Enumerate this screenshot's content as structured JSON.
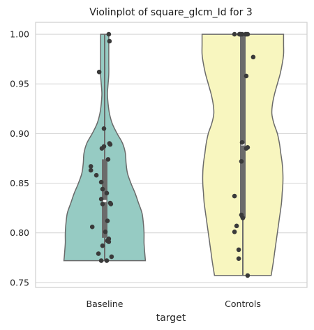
{
  "chart_data": {
    "type": "violin",
    "title": "Violinplot of square_glcm_Id for 3",
    "xlabel": "target",
    "ylabel": "",
    "categories": [
      "Baseline",
      "Controls"
    ],
    "ylim": [
      0.745,
      1.012
    ],
    "yticks": [
      0.75,
      0.8,
      0.85,
      0.9,
      0.95,
      1.0
    ],
    "ytick_labels": [
      "0.75",
      "0.80",
      "0.85",
      "0.90",
      "0.95",
      "1.00"
    ],
    "grid": "horizontal",
    "colors": {
      "Baseline": "#96CBC3",
      "Controls": "#F8F6BF",
      "outline": "#6a6a6a",
      "box": "#6b6b6b",
      "points": "#3a3a3a",
      "grid": "#d4d4d4"
    },
    "violins": [
      {
        "category": "Baseline",
        "min": 0.772,
        "max": 1.0,
        "median": 0.832,
        "q1": 0.795,
        "q3": 0.874,
        "half_width_profile": [
          [
            0.772,
            0.59
          ],
          [
            0.78,
            0.58
          ],
          [
            0.79,
            0.57
          ],
          [
            0.8,
            0.57
          ],
          [
            0.81,
            0.56
          ],
          [
            0.82,
            0.54
          ],
          [
            0.83,
            0.49
          ],
          [
            0.84,
            0.44
          ],
          [
            0.85,
            0.38
          ],
          [
            0.86,
            0.33
          ],
          [
            0.87,
            0.31
          ],
          [
            0.88,
            0.3
          ],
          [
            0.89,
            0.26
          ],
          [
            0.9,
            0.18
          ],
          [
            0.91,
            0.11
          ],
          [
            0.92,
            0.07
          ],
          [
            0.93,
            0.05
          ],
          [
            0.94,
            0.04
          ],
          [
            0.95,
            0.05
          ],
          [
            0.96,
            0.06
          ],
          [
            0.97,
            0.06
          ],
          [
            0.98,
            0.06
          ],
          [
            0.99,
            0.06
          ],
          [
            1.0,
            0.06
          ]
        ],
        "points": [
          {
            "y": 1.0,
            "dx": 0.06
          },
          {
            "y": 0.993,
            "dx": 0.07
          },
          {
            "y": 0.962,
            "dx": -0.08
          },
          {
            "y": 0.905,
            "dx": -0.01
          },
          {
            "y": 0.89,
            "dx": 0.07
          },
          {
            "y": 0.889,
            "dx": 0.08
          },
          {
            "y": 0.887,
            "dx": -0.01
          },
          {
            "y": 0.885,
            "dx": -0.04
          },
          {
            "y": 0.874,
            "dx": 0.05
          },
          {
            "y": 0.867,
            "dx": -0.2
          },
          {
            "y": 0.863,
            "dx": -0.2
          },
          {
            "y": 0.858,
            "dx": -0.12
          },
          {
            "y": 0.851,
            "dx": -0.05
          },
          {
            "y": 0.844,
            "dx": -0.03
          },
          {
            "y": 0.84,
            "dx": 0.03
          },
          {
            "y": 0.834,
            "dx": -0.05
          },
          {
            "y": 0.83,
            "dx": 0.08
          },
          {
            "y": 0.829,
            "dx": 0.09
          },
          {
            "y": 0.829,
            "dx": -0.03
          },
          {
            "y": 0.812,
            "dx": 0.04
          },
          {
            "y": 0.806,
            "dx": -0.18
          },
          {
            "y": 0.801,
            "dx": 0.01
          },
          {
            "y": 0.794,
            "dx": 0.06
          },
          {
            "y": 0.793,
            "dx": 0.05
          },
          {
            "y": 0.792,
            "dx": 0.04
          },
          {
            "y": 0.791,
            "dx": 0.06
          },
          {
            "y": 0.787,
            "dx": -0.03
          },
          {
            "y": 0.779,
            "dx": -0.09
          },
          {
            "y": 0.776,
            "dx": 0.1
          },
          {
            "y": 0.772,
            "dx": 0.03
          },
          {
            "y": 0.772,
            "dx": -0.05
          }
        ]
      },
      {
        "category": "Controls",
        "min": 0.757,
        "max": 1.0,
        "median": 0.889,
        "q1": 0.815,
        "q3": 1.0,
        "half_width_profile": [
          [
            0.757,
            0.41
          ],
          [
            0.77,
            0.44
          ],
          [
            0.78,
            0.46
          ],
          [
            0.79,
            0.48
          ],
          [
            0.8,
            0.5
          ],
          [
            0.81,
            0.52
          ],
          [
            0.82,
            0.54
          ],
          [
            0.83,
            0.56
          ],
          [
            0.84,
            0.57
          ],
          [
            0.85,
            0.58
          ],
          [
            0.86,
            0.58
          ],
          [
            0.87,
            0.57
          ],
          [
            0.88,
            0.55
          ],
          [
            0.89,
            0.53
          ],
          [
            0.9,
            0.5
          ],
          [
            0.91,
            0.45
          ],
          [
            0.92,
            0.42
          ],
          [
            0.93,
            0.43
          ],
          [
            0.94,
            0.46
          ],
          [
            0.95,
            0.5
          ],
          [
            0.96,
            0.54
          ],
          [
            0.97,
            0.57
          ],
          [
            0.98,
            0.59
          ],
          [
            0.99,
            0.59
          ],
          [
            1.0,
            0.59
          ]
        ],
        "points": [
          {
            "y": 1.0,
            "dx": -0.12
          },
          {
            "y": 1.0,
            "dx": -0.05
          },
          {
            "y": 1.0,
            "dx": -0.04
          },
          {
            "y": 1.0,
            "dx": -0.03
          },
          {
            "y": 1.0,
            "dx": -0.01
          },
          {
            "y": 1.0,
            "dx": 0.04
          },
          {
            "y": 1.0,
            "dx": 0.05
          },
          {
            "y": 1.0,
            "dx": 0.07
          },
          {
            "y": 0.977,
            "dx": 0.15
          },
          {
            "y": 0.958,
            "dx": 0.05
          },
          {
            "y": 0.891,
            "dx": -0.01
          },
          {
            "y": 0.886,
            "dx": 0.07
          },
          {
            "y": 0.885,
            "dx": 0.05
          },
          {
            "y": 0.872,
            "dx": -0.02
          },
          {
            "y": 0.837,
            "dx": -0.12
          },
          {
            "y": 0.818,
            "dx": -0.02
          },
          {
            "y": 0.815,
            "dx": 0.0
          },
          {
            "y": 0.807,
            "dx": -0.09
          },
          {
            "y": 0.801,
            "dx": -0.12
          },
          {
            "y": 0.783,
            "dx": -0.06
          },
          {
            "y": 0.774,
            "dx": -0.06
          },
          {
            "y": 0.757,
            "dx": 0.07
          }
        ]
      }
    ]
  }
}
